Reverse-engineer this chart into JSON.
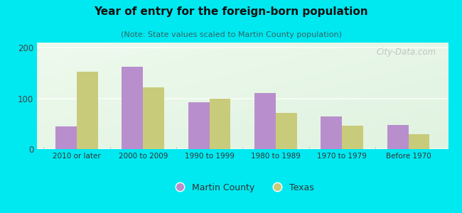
{
  "title": "Year of entry for the foreign-born population",
  "subtitle": "(Note: State values scaled to Martin County population)",
  "categories": [
    "2010 or later",
    "2000 to 2009",
    "1990 to 1999",
    "1980 to 1989",
    "1970 to 1979",
    "Before 1970"
  ],
  "martin_county": [
    45,
    163,
    93,
    110,
    65,
    48
  ],
  "texas": [
    153,
    122,
    99,
    72,
    46,
    29
  ],
  "martin_color": "#b88fcc",
  "texas_color": "#c8cc7a",
  "background_outer": "#00e8f0",
  "background_inner": "#e8f5e0",
  "ylim": [
    0,
    210
  ],
  "yticks": [
    0,
    100,
    200
  ],
  "bar_width": 0.32,
  "legend_labels": [
    "Martin County",
    "Texas"
  ],
  "watermark": "City-Data.com",
  "title_fontsize": 11,
  "subtitle_fontsize": 8
}
